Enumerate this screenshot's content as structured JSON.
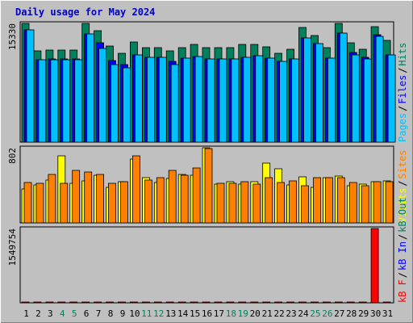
{
  "chart_data": {
    "type": "bar",
    "title": "Daily usage for May 2024",
    "days": [
      "1",
      "2",
      "3",
      "4",
      "5",
      "6",
      "7",
      "8",
      "9",
      "10",
      "11",
      "12",
      "13",
      "14",
      "15",
      "16",
      "17",
      "18",
      "19",
      "20",
      "21",
      "22",
      "23",
      "24",
      "25",
      "26",
      "27",
      "28",
      "29",
      "30",
      "31"
    ],
    "weekend_days": [
      "4",
      "5",
      "11",
      "12",
      "18",
      "19",
      "25",
      "26"
    ],
    "panels": [
      {
        "id": "hits",
        "ymax_label": "15330",
        "ymax": 15330,
        "legend": [
          {
            "label": "Pages",
            "color": "#00c0ff"
          },
          {
            "label": "Files",
            "color": "#0000ff"
          },
          {
            "label": "Hits",
            "color": "#00805c"
          }
        ],
        "series": [
          {
            "name": "Hits",
            "color": "#00805c",
            "values": [
              15330,
              11800,
              11900,
              11900,
              11900,
              15330,
              14400,
              12400,
              11500,
              12900,
              12200,
              12200,
              11800,
              12200,
              12600,
              12200,
              12200,
              12200,
              12600,
              12600,
              12300,
              11500,
              12000,
              14800,
              13800,
              12200,
              15330,
              12800,
              12000,
              14900,
              13100
            ]
          },
          {
            "name": "Files",
            "color": "#0000ff",
            "values": [
              14500,
              10600,
              10700,
              10700,
              10700,
              14000,
              12800,
              10500,
              10000,
              11300,
              11000,
              10900,
              10400,
              10800,
              11100,
              10700,
              10700,
              10700,
              11000,
              11200,
              10800,
              10400,
              10700,
              13500,
              12700,
              10800,
              14100,
              11600,
              11000,
              13900,
              11300
            ]
          },
          {
            "name": "Pages",
            "color": "#00c0ff",
            "values": [
              14500,
              10600,
              10600,
              10600,
              10600,
              14000,
              12100,
              10000,
              9600,
              11300,
              11000,
              10900,
              10000,
              10800,
              11100,
              10700,
              10700,
              10700,
              11000,
              11200,
              10800,
              10400,
              10700,
              13500,
              12700,
              10800,
              14100,
              11300,
              10700,
              13700,
              11300
            ]
          }
        ]
      },
      {
        "id": "visits",
        "ymax_label": "802",
        "ymax": 802,
        "legend": [
          {
            "label": "Visits",
            "color": "#ffff00"
          },
          {
            "label": "Sites",
            "color": "#ff8000"
          }
        ],
        "series": [
          {
            "name": "Visits",
            "color": "#ffff00",
            "values": [
              360,
              405,
              460,
              720,
              420,
              450,
              510,
              380,
              440,
              680,
              480,
              430,
              475,
              520,
              510,
              802,
              410,
              440,
              415,
              440,
              640,
              580,
              405,
              490,
              380,
              480,
              500,
              400,
              410,
              440,
              450
            ]
          },
          {
            "name": "Sites",
            "color": "#ff8000",
            "values": [
              430,
              425,
              520,
              420,
              560,
              540,
              520,
              420,
              440,
              720,
              460,
              480,
              560,
              510,
              590,
              790,
              420,
              420,
              440,
              410,
              480,
              430,
              450,
              400,
              480,
              480,
              480,
              430,
              400,
              440,
              440
            ]
          }
        ]
      },
      {
        "id": "kbytes",
        "ymax_label": "1549754",
        "ymax": 1549754,
        "legend": [
          {
            "label": "kB F",
            "color": "#ff0000"
          },
          {
            "label": "kB In",
            "color": "#0000ff"
          },
          {
            "label": "kB Out",
            "color": "#00805c"
          }
        ],
        "series": [
          {
            "name": "kB F",
            "color": "#ff0000",
            "values": [
              770,
              400,
              260,
              160,
              180,
              320,
              230,
              80,
              110,
              600,
              120,
              190,
              190,
              180,
              190,
              180,
              190,
              180,
              290,
              180,
              360,
              180,
              180,
              180,
              190,
              170,
              190,
              180,
              180,
              1549754,
              210
            ]
          }
        ]
      }
    ]
  }
}
